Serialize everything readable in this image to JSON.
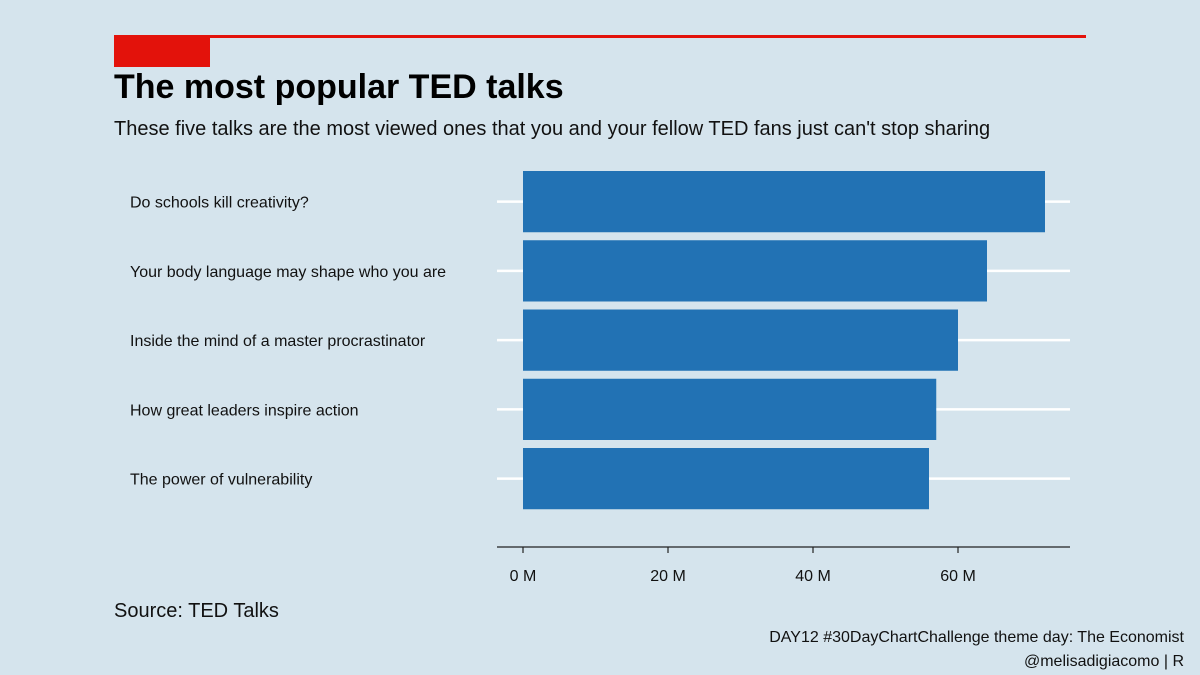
{
  "header": {
    "title": "The most popular TED talks",
    "subtitle": "These five talks are the most viewed ones that you and your fellow TED fans just can't stop sharing"
  },
  "footer": {
    "source": "Source: TED Talks",
    "credit_line1": "DAY12 #30DayChartChallenge theme day: The Economist",
    "credit_line2": "@melisadigiacomo | R"
  },
  "colors": {
    "accent": "#e3120b",
    "bar": "#2272b4",
    "background": "#d5e4ed"
  },
  "chart_data": {
    "type": "bar",
    "orientation": "horizontal",
    "categories": [
      "Do schools kill creativity?",
      "Your body language may shape who you are",
      "Inside the mind of a master procrastinator",
      "How great leaders inspire action",
      "The power of vulnerability"
    ],
    "values": [
      72,
      64,
      60,
      57,
      56
    ],
    "value_unit": "M",
    "xlim": [
      0,
      75
    ],
    "xticks": [
      0,
      20,
      40,
      60
    ],
    "xtick_labels": [
      "0 M",
      "20 M",
      "40 M",
      "60 M"
    ],
    "title": "The most popular TED talks",
    "xlabel": "",
    "ylabel": "",
    "grid": "horizontal"
  }
}
